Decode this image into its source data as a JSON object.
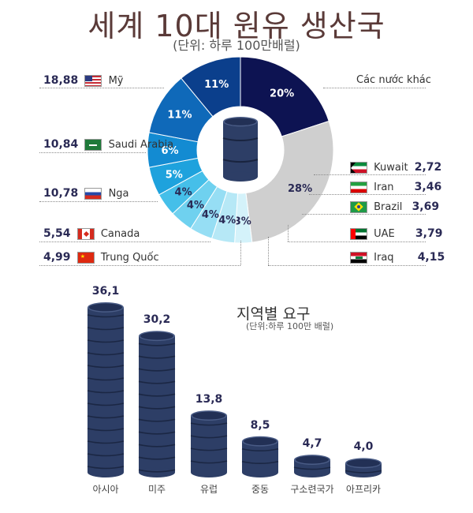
{
  "title": "세계 10대 원유 생산국",
  "subtitle": "(단위: 하루 100만배럴)",
  "chart_data": [
    {
      "type": "pie",
      "title": "세계 10대 원유 생산국",
      "unit": "(단위: 하루 100만배럴)",
      "slices": [
        {
          "name": "Mỹ",
          "share": 20,
          "label": "20%",
          "value": "18,88",
          "color": "#0d1352"
        },
        {
          "name": "Các nước khác",
          "share": 28,
          "label": "28%",
          "value": "",
          "color": "#cfcfcf"
        },
        {
          "name": "Kuwait",
          "share": 3,
          "label": "3%",
          "value": "2,72",
          "color": "#d4f2fa"
        },
        {
          "name": "Iran",
          "share": 4,
          "label": "4%",
          "value": "3,46",
          "color": "#b6e8f6"
        },
        {
          "name": "Brazil",
          "share": 4,
          "label": "4%",
          "value": "3,69",
          "color": "#96def4"
        },
        {
          "name": "UAE",
          "share": 4,
          "label": "4%",
          "value": "3,79",
          "color": "#6fd1ef"
        },
        {
          "name": "Iraq",
          "share": 4,
          "label": "4%",
          "value": "4,15",
          "color": "#45bfe9"
        },
        {
          "name": "Trung Quốc",
          "share": 5,
          "label": "5%",
          "value": "4,99",
          "color": "#1ea2dd"
        },
        {
          "name": "Canada",
          "share": 6,
          "label": "6%",
          "value": "5,54",
          "color": "#138bd2"
        },
        {
          "name": "Nga",
          "share": 11,
          "label": "11%",
          "value": "10,78",
          "color": "#0f69b9"
        },
        {
          "name": "Saudi Arabia",
          "share": 11,
          "label": "11%",
          "value": "10,84",
          "color": "#0b3f8c"
        }
      ]
    },
    {
      "type": "bar",
      "title": "지역별 요구",
      "unit": "(단위:하루 100만 배럴)",
      "categories": [
        "아시아",
        "미주",
        "유럽",
        "중동",
        "구소련국가",
        "아프리카"
      ],
      "values": [
        36.1,
        30.2,
        13.8,
        8.5,
        4.7,
        4.0
      ],
      "value_labels": [
        "36,1",
        "30,2",
        "13,8",
        "8,5",
        "4,7",
        "4,0"
      ],
      "ylim": [
        0,
        36.1
      ],
      "color": "#2d3e66"
    }
  ],
  "colors": {
    "title": "#5a3a38",
    "barrel": "#2d3e66",
    "value": "#2a2a55"
  },
  "icons": {
    "center": "oil-barrel-icon"
  }
}
